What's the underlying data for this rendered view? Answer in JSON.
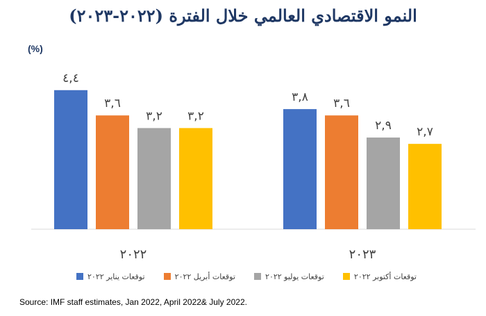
{
  "chart_data": {
    "type": "bar",
    "title": "النمو الاقتصادي العالمي خلال الفترة (٢٠٢٢-٢٠٢٣)",
    "unit": "(%)",
    "categories": [
      "٢٠٢٢",
      "٢٠٢٣"
    ],
    "series": [
      {
        "name": "توقعات يناير ٢٠٢٢",
        "color": "#4472c4",
        "values": [
          4.4,
          3.8
        ],
        "labels": [
          "٤,٤",
          "٣,٨"
        ]
      },
      {
        "name": "توقعات أبريل ٢٠٢٢",
        "color": "#ed7d31",
        "values": [
          3.6,
          3.6
        ],
        "labels": [
          "٣,٦",
          "٣,٦"
        ]
      },
      {
        "name": "توقعات يوليو ٢٠٢٢",
        "color": "#a5a5a5",
        "values": [
          3.2,
          2.9
        ],
        "labels": [
          "٣,٢",
          "٢,٩"
        ]
      },
      {
        "name": "توقعات أكتوبر ٢٠٢٢",
        "color": "#ffc000",
        "values": [
          3.2,
          2.7
        ],
        "labels": [
          "٣,٢",
          "٢,٧"
        ]
      }
    ],
    "ylim": [
      0,
      4.8
    ],
    "grid": false,
    "legend_position": "bottom"
  },
  "source": "Source: IMF staff estimates, Jan 2022, April 2022& July 2022."
}
